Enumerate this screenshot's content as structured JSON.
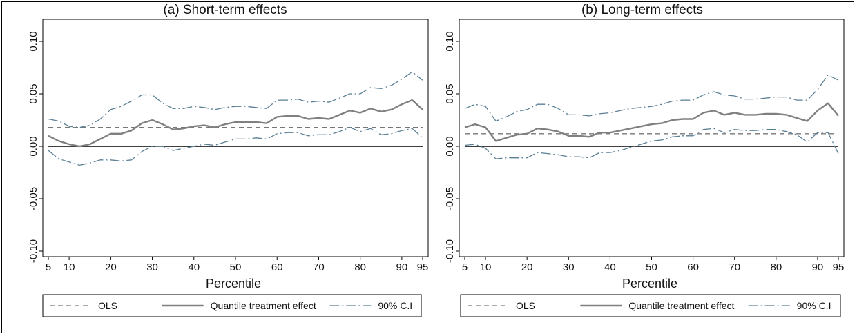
{
  "chart_data": [
    {
      "type": "line",
      "title": "(a) Short-term effects",
      "xlabel": "Percentile",
      "ylabel": "",
      "xlim": [
        5,
        95
      ],
      "ylim": [
        -0.1,
        0.1
      ],
      "xticks": [
        5,
        10,
        20,
        30,
        40,
        50,
        60,
        70,
        80,
        90,
        95
      ],
      "xtick_labels": [
        "5",
        "10",
        "20",
        "30",
        "40",
        "50",
        "60",
        "70",
        "80",
        "90",
        "95"
      ],
      "yticks": [
        -0.1,
        -0.05,
        0,
        0.05,
        0.1
      ],
      "ytick_labels": [
        "-0.10",
        "-0.05",
        "0.00",
        "0.05",
        "0.10"
      ],
      "zero_line": 0,
      "grid": false,
      "legend": {
        "placement": "bottom",
        "entries": [
          "OLS",
          "Quantile treatment effect",
          "90% C.I"
        ]
      },
      "x": [
        5,
        7.5,
        10,
        12.5,
        15,
        17.5,
        20,
        22.5,
        25,
        27.5,
        30,
        32.5,
        35,
        37.5,
        40,
        42.5,
        45,
        47.5,
        50,
        52.5,
        55,
        57.5,
        60,
        62.5,
        65,
        67.5,
        70,
        72.5,
        75,
        77.5,
        80,
        82.5,
        85,
        87.5,
        90,
        92.5,
        95
      ],
      "series": [
        {
          "name": "OLS",
          "style": "dashed",
          "color": "#777777",
          "values": [
            0.018,
            0.018,
            0.018,
            0.018,
            0.018,
            0.018,
            0.018,
            0.018,
            0.018,
            0.018,
            0.018,
            0.018,
            0.018,
            0.018,
            0.018,
            0.018,
            0.018,
            0.018,
            0.018,
            0.018,
            0.018,
            0.018,
            0.018,
            0.018,
            0.018,
            0.018,
            0.018,
            0.018,
            0.018,
            0.018,
            0.018,
            0.018,
            0.018,
            0.018,
            0.018,
            0.018,
            0.018
          ]
        },
        {
          "name": "Quantile treatment effect",
          "style": "solid",
          "color": "#808080",
          "values": [
            0.01,
            0.005,
            0.002,
            0.0,
            0.002,
            0.007,
            0.012,
            0.012,
            0.015,
            0.022,
            0.025,
            0.021,
            0.016,
            0.017,
            0.019,
            0.02,
            0.018,
            0.021,
            0.023,
            0.023,
            0.023,
            0.022,
            0.028,
            0.029,
            0.029,
            0.026,
            0.027,
            0.026,
            0.03,
            0.034,
            0.032,
            0.036,
            0.033,
            0.035,
            0.04,
            0.044,
            0.035
          ]
        },
        {
          "name": "90% C.I upper",
          "style": "dashdot",
          "color": "#5a7f95",
          "values": [
            0.026,
            0.024,
            0.019,
            0.018,
            0.02,
            0.026,
            0.035,
            0.038,
            0.043,
            0.049,
            0.049,
            0.041,
            0.036,
            0.036,
            0.038,
            0.037,
            0.035,
            0.037,
            0.038,
            0.038,
            0.037,
            0.036,
            0.044,
            0.044,
            0.045,
            0.042,
            0.043,
            0.042,
            0.046,
            0.05,
            0.05,
            0.056,
            0.055,
            0.058,
            0.064,
            0.071,
            0.063
          ]
        },
        {
          "name": "90% C.I lower",
          "style": "dashdot",
          "color": "#5a7f95",
          "values": [
            -0.004,
            -0.012,
            -0.015,
            -0.018,
            -0.016,
            -0.013,
            -0.013,
            -0.014,
            -0.013,
            -0.005,
            0.0,
            0.0,
            -0.004,
            -0.002,
            0.0,
            0.002,
            0.001,
            0.004,
            0.007,
            0.007,
            0.008,
            0.007,
            0.012,
            0.013,
            0.013,
            0.01,
            0.011,
            0.011,
            0.014,
            0.018,
            0.014,
            0.017,
            0.011,
            0.012,
            0.015,
            0.017,
            0.008
          ]
        }
      ]
    },
    {
      "type": "line",
      "title": "(b) Long-term effects",
      "xlabel": "Percentile",
      "ylabel": "",
      "xlim": [
        5,
        95
      ],
      "ylim": [
        -0.1,
        0.1
      ],
      "xticks": [
        5,
        10,
        20,
        30,
        40,
        50,
        60,
        70,
        80,
        90,
        95
      ],
      "xtick_labels": [
        "5",
        "10",
        "20",
        "30",
        "40",
        "50",
        "60",
        "70",
        "80",
        "90",
        "95"
      ],
      "yticks": [
        -0.1,
        -0.05,
        0,
        0.05,
        0.1
      ],
      "ytick_labels": [
        "-0.10",
        "-0.05",
        "0.00",
        "0.05",
        "0.10"
      ],
      "zero_line": 0,
      "grid": false,
      "legend": {
        "placement": "bottom",
        "entries": [
          "OLS",
          "Quantile treatment effect",
          "90% C.I"
        ]
      },
      "x": [
        5,
        7.5,
        10,
        12.5,
        15,
        17.5,
        20,
        22.5,
        25,
        27.5,
        30,
        32.5,
        35,
        37.5,
        40,
        42.5,
        45,
        47.5,
        50,
        52.5,
        55,
        57.5,
        60,
        62.5,
        65,
        67.5,
        70,
        72.5,
        75,
        77.5,
        80,
        82.5,
        85,
        87.5,
        90,
        92.5,
        95
      ],
      "series": [
        {
          "name": "OLS",
          "style": "dashed",
          "color": "#777777",
          "values": [
            0.012,
            0.012,
            0.012,
            0.012,
            0.012,
            0.012,
            0.012,
            0.012,
            0.012,
            0.012,
            0.012,
            0.012,
            0.012,
            0.012,
            0.012,
            0.012,
            0.012,
            0.012,
            0.012,
            0.012,
            0.012,
            0.012,
            0.012,
            0.012,
            0.012,
            0.012,
            0.012,
            0.012,
            0.012,
            0.012,
            0.012,
            0.012,
            0.012,
            0.012,
            0.012,
            0.012,
            0.012
          ]
        },
        {
          "name": "Quantile treatment effect",
          "style": "solid",
          "color": "#808080",
          "values": [
            0.018,
            0.021,
            0.018,
            0.005,
            0.008,
            0.011,
            0.012,
            0.017,
            0.016,
            0.014,
            0.01,
            0.01,
            0.009,
            0.013,
            0.013,
            0.015,
            0.017,
            0.019,
            0.021,
            0.022,
            0.025,
            0.026,
            0.026,
            0.032,
            0.034,
            0.03,
            0.032,
            0.03,
            0.03,
            0.031,
            0.031,
            0.03,
            0.027,
            0.024,
            0.034,
            0.041,
            0.029
          ]
        },
        {
          "name": "90% C.I upper",
          "style": "dashdot",
          "color": "#5a7f95",
          "values": [
            0.036,
            0.04,
            0.038,
            0.024,
            0.028,
            0.033,
            0.035,
            0.04,
            0.04,
            0.036,
            0.03,
            0.03,
            0.029,
            0.031,
            0.032,
            0.034,
            0.036,
            0.037,
            0.038,
            0.04,
            0.043,
            0.044,
            0.044,
            0.049,
            0.052,
            0.049,
            0.048,
            0.045,
            0.045,
            0.046,
            0.047,
            0.047,
            0.044,
            0.044,
            0.054,
            0.068,
            0.063
          ]
        },
        {
          "name": "90% C.I lower",
          "style": "dashdot",
          "color": "#5a7f95",
          "values": [
            0.001,
            0.002,
            -0.002,
            -0.012,
            -0.011,
            -0.011,
            -0.011,
            -0.006,
            -0.007,
            -0.008,
            -0.01,
            -0.01,
            -0.011,
            -0.006,
            -0.006,
            -0.004,
            -0.001,
            0.002,
            0.005,
            0.006,
            0.009,
            0.01,
            0.01,
            0.016,
            0.017,
            0.013,
            0.016,
            0.015,
            0.015,
            0.016,
            0.016,
            0.014,
            0.011,
            0.004,
            0.013,
            0.013,
            -0.007
          ]
        }
      ]
    }
  ]
}
